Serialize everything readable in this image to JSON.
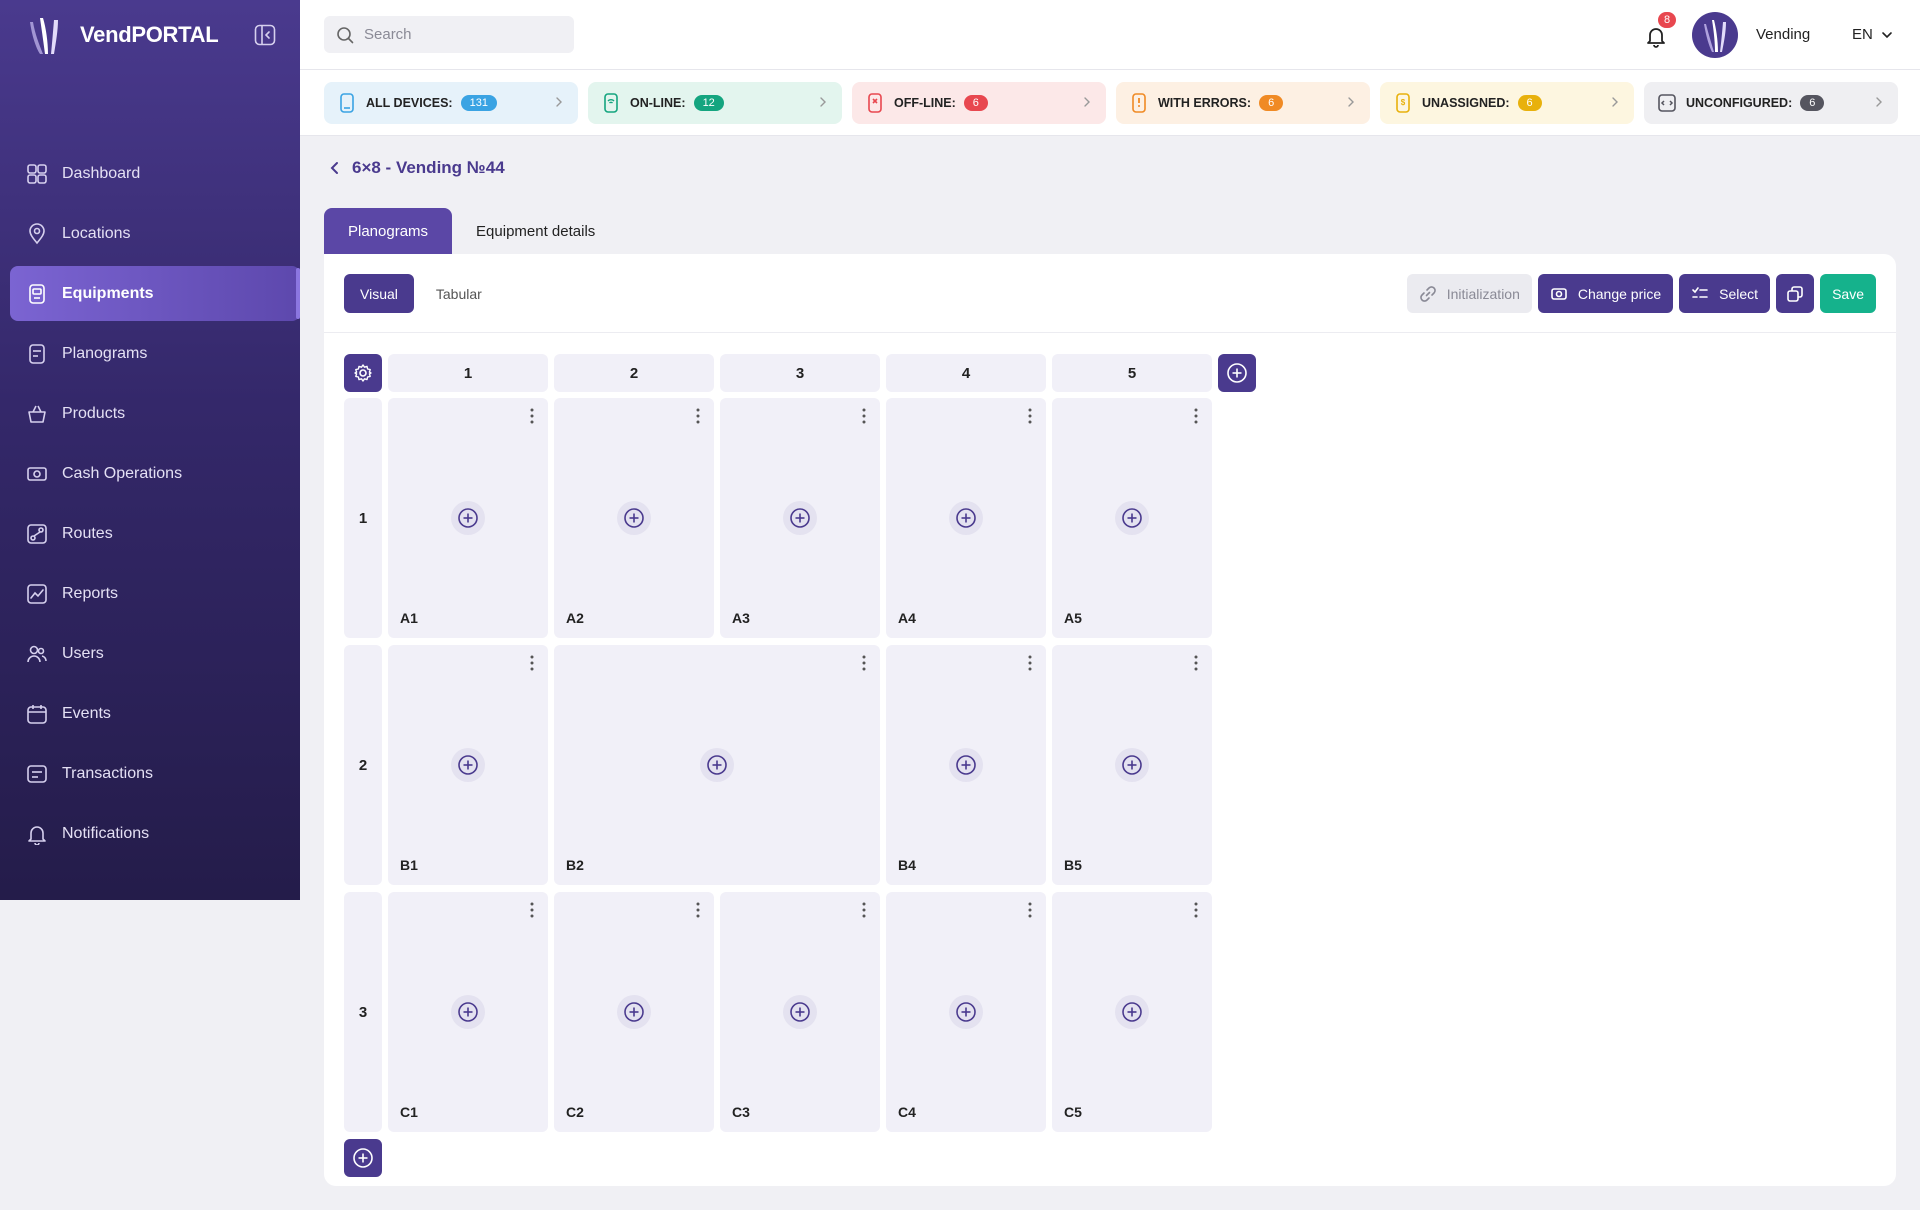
{
  "brand": {
    "name": "VendPORTAL"
  },
  "sidebar": {
    "items": [
      {
        "label": "Dashboard",
        "icon": "dashboard-icon",
        "active": false
      },
      {
        "label": "Locations",
        "icon": "location-pin-icon",
        "active": false
      },
      {
        "label": "Equipments",
        "icon": "vending-machine-icon",
        "active": true
      },
      {
        "label": "Planograms",
        "icon": "planogram-icon",
        "active": false
      },
      {
        "label": "Products",
        "icon": "basket-icon",
        "active": false
      },
      {
        "label": "Cash Operations",
        "icon": "cash-icon",
        "active": false
      },
      {
        "label": "Routes",
        "icon": "routes-icon",
        "active": false
      },
      {
        "label": "Reports",
        "icon": "reports-icon",
        "active": false
      },
      {
        "label": "Users",
        "icon": "users-icon",
        "active": false
      },
      {
        "label": "Events",
        "icon": "calendar-icon",
        "active": false
      },
      {
        "label": "Transactions",
        "icon": "transactions-icon",
        "active": false
      },
      {
        "label": "Notifications",
        "icon": "bell-icon",
        "active": false
      }
    ]
  },
  "topbar": {
    "search_placeholder": "Search",
    "notification_count": "8",
    "user_name": "Vending",
    "language": "EN"
  },
  "status": [
    {
      "label": "ALL DEVICES:",
      "count": "131",
      "color": "#3aa3e3",
      "bg": "#e6f2fa"
    },
    {
      "label": "ON-LINE:",
      "count": "12",
      "color": "#14a57f",
      "bg": "#e3f5ee"
    },
    {
      "label": "OFF-LINE:",
      "count": "6",
      "color": "#e8474f",
      "bg": "#fce8e8"
    },
    {
      "label": "WITH ERRORS:",
      "count": "6",
      "color": "#f08a24",
      "bg": "#fdf0e3"
    },
    {
      "label": "UNASSIGNED:",
      "count": "6",
      "color": "#e8b10c",
      "bg": "#fdf6e0"
    },
    {
      "label": "UNCONFIGURED:",
      "count": "6",
      "color": "#55555f",
      "bg": "#efeff2"
    }
  ],
  "page": {
    "title": "6×8 - Vending №44"
  },
  "tabs": [
    {
      "label": "Planograms",
      "active": true
    },
    {
      "label": "Equipment details",
      "active": false
    }
  ],
  "view": {
    "visual": "Visual",
    "tabular": "Tabular"
  },
  "actions": {
    "initialization": "Initialization",
    "change_price": "Change price",
    "select": "Select",
    "save": "Save"
  },
  "grid": {
    "columns": [
      "1",
      "2",
      "3",
      "4",
      "5"
    ],
    "rows": [
      {
        "label": "1",
        "cells": [
          {
            "label": "A1",
            "span": 1
          },
          {
            "label": "A2",
            "span": 1
          },
          {
            "label": "A3",
            "span": 1
          },
          {
            "label": "A4",
            "span": 1
          },
          {
            "label": "A5",
            "span": 1
          }
        ]
      },
      {
        "label": "2",
        "cells": [
          {
            "label": "B1",
            "span": 1
          },
          {
            "label": "B2",
            "span": 2
          },
          {
            "label": "B4",
            "span": 1
          },
          {
            "label": "B5",
            "span": 1
          }
        ]
      },
      {
        "label": "3",
        "cells": [
          {
            "label": "C1",
            "span": 1
          },
          {
            "label": "C2",
            "span": 1
          },
          {
            "label": "C3",
            "span": 1
          },
          {
            "label": "C4",
            "span": 1
          },
          {
            "label": "C5",
            "span": 1
          }
        ]
      }
    ]
  }
}
